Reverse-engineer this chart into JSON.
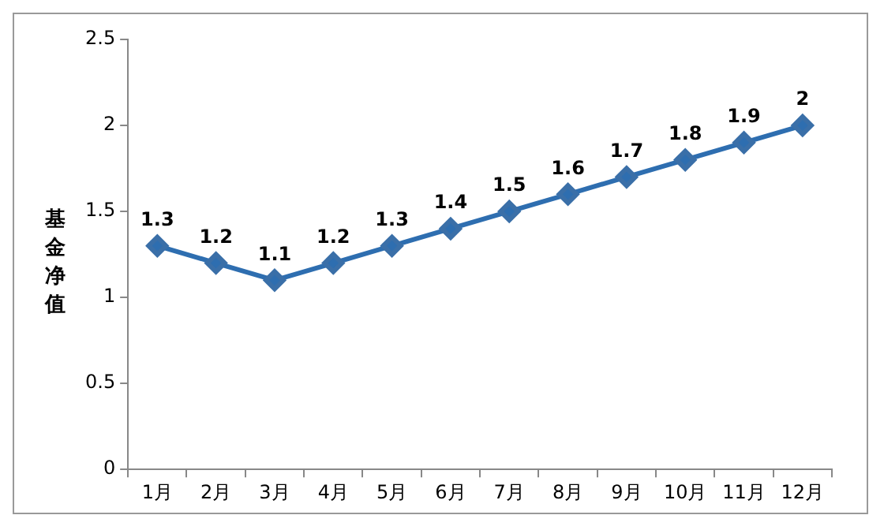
{
  "chart_data": {
    "type": "line",
    "ylabel": "基金净值",
    "categories": [
      "1月",
      "2月",
      "3月",
      "4月",
      "5月",
      "6月",
      "7月",
      "8月",
      "9月",
      "10月",
      "11月",
      "12月"
    ],
    "series": [
      {
        "color": "#2e6eb0",
        "values": [
          1.3,
          1.2,
          1.1,
          1.2,
          1.3,
          1.4,
          1.5,
          1.6,
          1.7,
          1.8,
          1.9,
          2
        ]
      }
    ],
    "ylim": [
      0,
      2.5
    ],
    "yticks": [
      0,
      0.5,
      1,
      1.5,
      2,
      2.5
    ],
    "grid": false,
    "legend": false,
    "marker": "diamond",
    "line_style": "solid",
    "data_labels": true
  }
}
